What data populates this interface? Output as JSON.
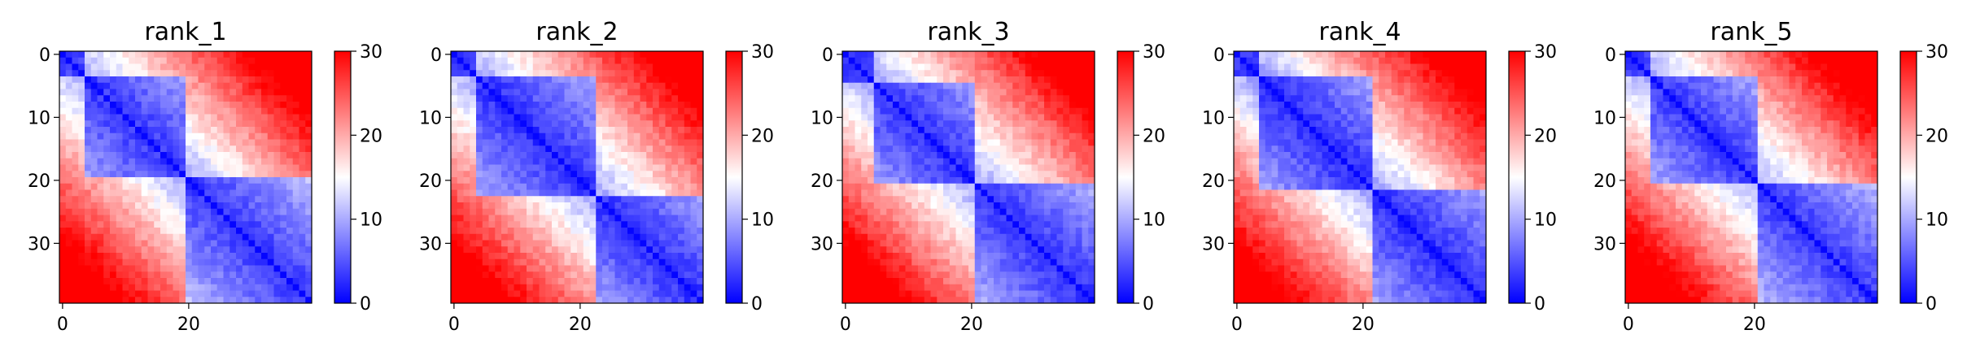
{
  "chart_data": {
    "type": "heatmap",
    "grid_size": 40,
    "colormap": {
      "name": "bwr",
      "low": "#0000ff",
      "mid": "#ffffff",
      "high": "#ff0000"
    },
    "value_range": [
      0,
      30
    ],
    "x_ticks": [
      0,
      20
    ],
    "y_ticks": [
      0,
      10,
      20,
      30
    ],
    "colorbar_ticks": [
      0,
      10,
      20,
      30
    ],
    "xlim": [
      -0.5,
      39.5
    ],
    "ylim": [
      39.5,
      -0.5
    ],
    "panels": [
      {
        "title": "rank_1",
        "tad_boundaries": [
          3,
          19,
          39
        ],
        "base_offset": 0.8,
        "seed": 11
      },
      {
        "title": "rank_2",
        "tad_boundaries": [
          3,
          22,
          39
        ],
        "base_offset": 0.4,
        "seed": 23
      },
      {
        "title": "rank_3",
        "tad_boundaries": [
          4,
          20,
          39
        ],
        "base_offset": 0.6,
        "seed": 37
      },
      {
        "title": "rank_4",
        "tad_boundaries": [
          3,
          21,
          39
        ],
        "base_offset": 0.2,
        "seed": 41
      },
      {
        "title": "rank_5",
        "tad_boundaries": [
          3,
          20,
          39
        ],
        "base_offset": 0.9,
        "seed": 53
      }
    ]
  }
}
